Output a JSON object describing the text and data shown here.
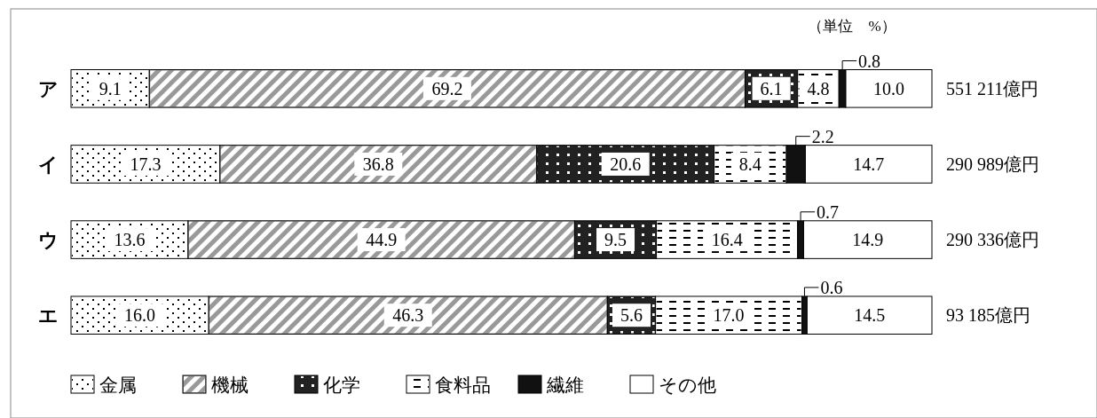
{
  "chart_data": {
    "type": "bar",
    "orientation": "horizontal",
    "stacked": true,
    "categories": [
      "ア",
      "イ",
      "ウ",
      "エ"
    ],
    "xlim": [
      0,
      100
    ],
    "tick_labels": "y",
    "legend": "bottom",
    "annotations": [
      "（単位　%）",
      "551 211億円",
      "290 989億円",
      "290 336億円",
      "93 185億円"
    ],
    "series": [
      {
        "name": "金属",
        "color": "#ffffff",
        "values": [
          9.1,
          17.3,
          13.6,
          16.0
        ],
        "value_labels": [
          "9.1",
          "17.3",
          "13.6",
          "16.0"
        ]
      },
      {
        "name": "機械",
        "color": "#999999",
        "values": [
          69.2,
          36.8,
          44.9,
          46.3
        ],
        "value_labels": [
          "69.2",
          "36.8",
          "44.9",
          "46.3"
        ]
      },
      {
        "name": "化学",
        "color": "#222222",
        "values": [
          6.1,
          20.6,
          9.5,
          5.6
        ],
        "value_labels": [
          "6.1",
          "20.6",
          "9.5",
          "5.6"
        ]
      },
      {
        "name": "食料品",
        "color": "#ffffff",
        "values": [
          4.8,
          8.4,
          16.4,
          17.0
        ],
        "value_labels": [
          "4.8",
          "8.4",
          "16.4",
          "17.0"
        ]
      },
      {
        "name": "繊維",
        "color": "#111111",
        "values": [
          0.8,
          2.2,
          0.7,
          0.6
        ],
        "value_labels": [
          "0.8",
          "2.2",
          "0.7",
          "0.6"
        ]
      },
      {
        "name": "その他",
        "color": "#ffffff",
        "values": [
          10.0,
          14.7,
          14.9,
          14.5
        ],
        "value_labels": [
          "10.0",
          "14.7",
          "14.9",
          "14.5"
        ]
      }
    ]
  }
}
